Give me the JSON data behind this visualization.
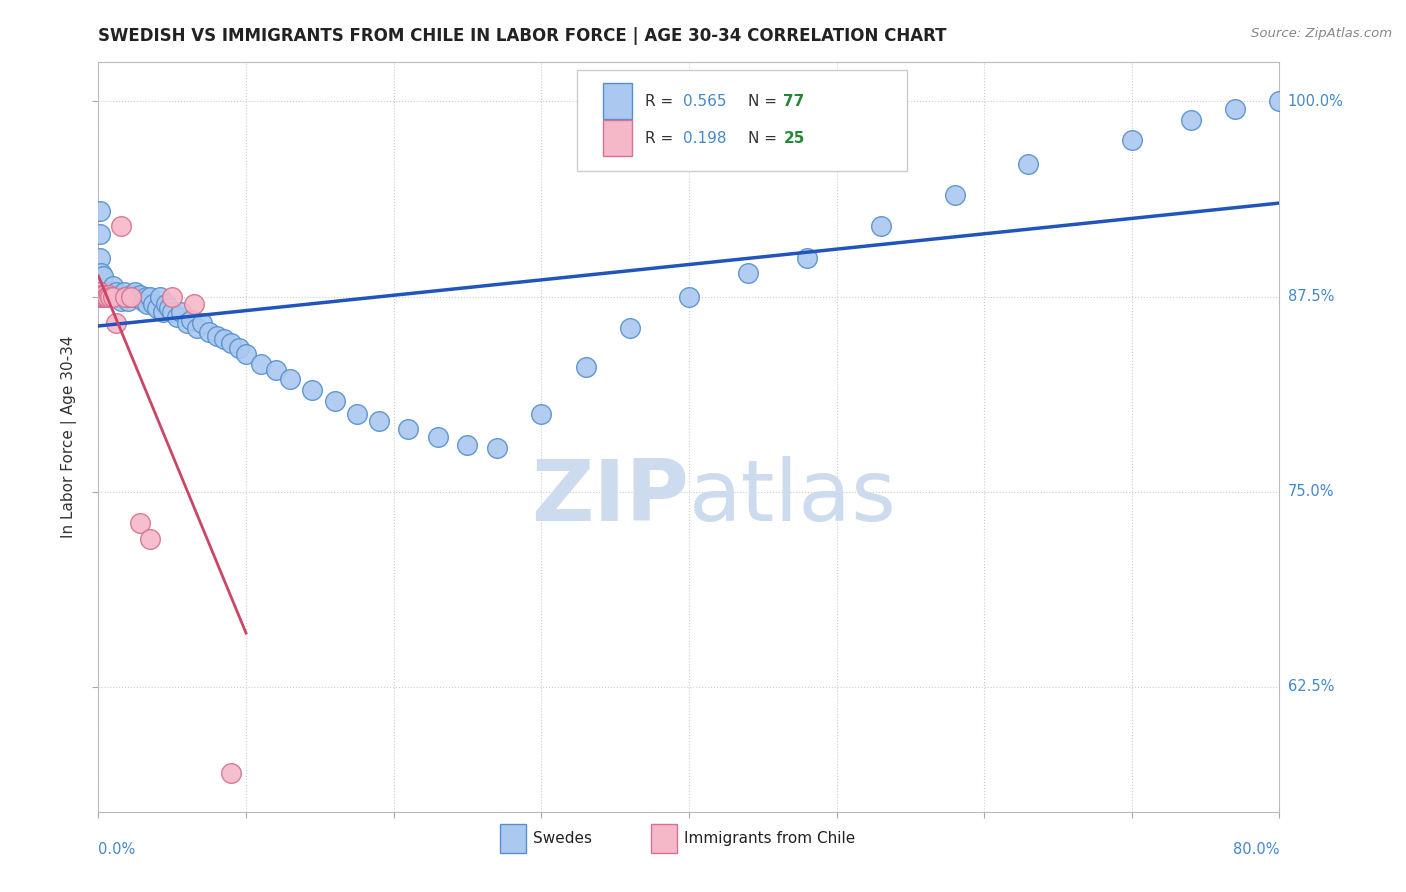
{
  "title": "SWEDISH VS IMMIGRANTS FROM CHILE IN LABOR FORCE | AGE 30-34 CORRELATION CHART",
  "source": "Source: ZipAtlas.com",
  "ylabel": "In Labor Force | Age 30-34",
  "R_swedish": 0.565,
  "N_swedish": 77,
  "R_chile": 0.198,
  "N_chile": 25,
  "swedes_color": "#aac8f0",
  "swedes_edge_color": "#5590cc",
  "chile_color": "#f5b8c8",
  "chile_edge_color": "#d87090",
  "trendline_swedes_color": "#2255bb",
  "trendline_chile_color": "#cc4466",
  "watermark_text": "ZIPatlas",
  "watermark_color": "#ccdcee",
  "title_color": "#222222",
  "axis_color": "#4488cc",
  "legend_r_color": "#4488cc",
  "legend_n_color": "#228833",
  "xlim": [
    0.0,
    0.8
  ],
  "ylim": [
    0.545,
    1.025
  ],
  "figsize": [
    14.06,
    8.92
  ],
  "dpi": 100,
  "swedes_x": [
    0.001,
    0.001,
    0.001,
    0.001,
    0.002,
    0.002,
    0.003,
    0.003,
    0.005,
    0.006,
    0.007,
    0.008,
    0.009,
    0.01,
    0.01,
    0.011,
    0.012,
    0.013,
    0.014,
    0.015,
    0.016,
    0.017,
    0.018,
    0.02,
    0.021,
    0.022,
    0.024,
    0.025,
    0.027,
    0.028,
    0.03,
    0.032,
    0.033,
    0.035,
    0.037,
    0.04,
    0.042,
    0.044,
    0.046,
    0.048,
    0.05,
    0.053,
    0.056,
    0.06,
    0.063,
    0.067,
    0.07,
    0.075,
    0.08,
    0.085,
    0.09,
    0.095,
    0.1,
    0.11,
    0.12,
    0.13,
    0.145,
    0.16,
    0.175,
    0.19,
    0.21,
    0.23,
    0.25,
    0.27,
    0.3,
    0.33,
    0.36,
    0.4,
    0.44,
    0.48,
    0.53,
    0.58,
    0.63,
    0.7,
    0.74,
    0.77,
    0.8
  ],
  "swedes_y": [
    0.875,
    0.9,
    0.915,
    0.93,
    0.875,
    0.89,
    0.875,
    0.888,
    0.875,
    0.878,
    0.875,
    0.876,
    0.875,
    0.875,
    0.882,
    0.875,
    0.878,
    0.875,
    0.875,
    0.872,
    0.876,
    0.878,
    0.875,
    0.872,
    0.875,
    0.876,
    0.875,
    0.878,
    0.875,
    0.876,
    0.872,
    0.875,
    0.87,
    0.875,
    0.87,
    0.868,
    0.875,
    0.865,
    0.87,
    0.868,
    0.865,
    0.862,
    0.865,
    0.858,
    0.86,
    0.855,
    0.858,
    0.852,
    0.85,
    0.848,
    0.845,
    0.842,
    0.838,
    0.832,
    0.828,
    0.822,
    0.815,
    0.808,
    0.8,
    0.795,
    0.79,
    0.785,
    0.78,
    0.778,
    0.8,
    0.83,
    0.855,
    0.875,
    0.89,
    0.9,
    0.92,
    0.94,
    0.96,
    0.975,
    0.988,
    0.995,
    1.0
  ],
  "chile_x": [
    0.001,
    0.001,
    0.001,
    0.001,
    0.002,
    0.002,
    0.002,
    0.003,
    0.003,
    0.004,
    0.004,
    0.005,
    0.006,
    0.007,
    0.008,
    0.01,
    0.012,
    0.015,
    0.018,
    0.022,
    0.028,
    0.035,
    0.05,
    0.065,
    0.09
  ],
  "chile_y": [
    0.875,
    0.875,
    0.876,
    0.878,
    0.875,
    0.876,
    0.875,
    0.875,
    0.876,
    0.875,
    0.876,
    0.875,
    0.875,
    0.876,
    0.875,
    0.875,
    0.858,
    0.92,
    0.875,
    0.875,
    0.73,
    0.72,
    0.875,
    0.87,
    0.57
  ]
}
